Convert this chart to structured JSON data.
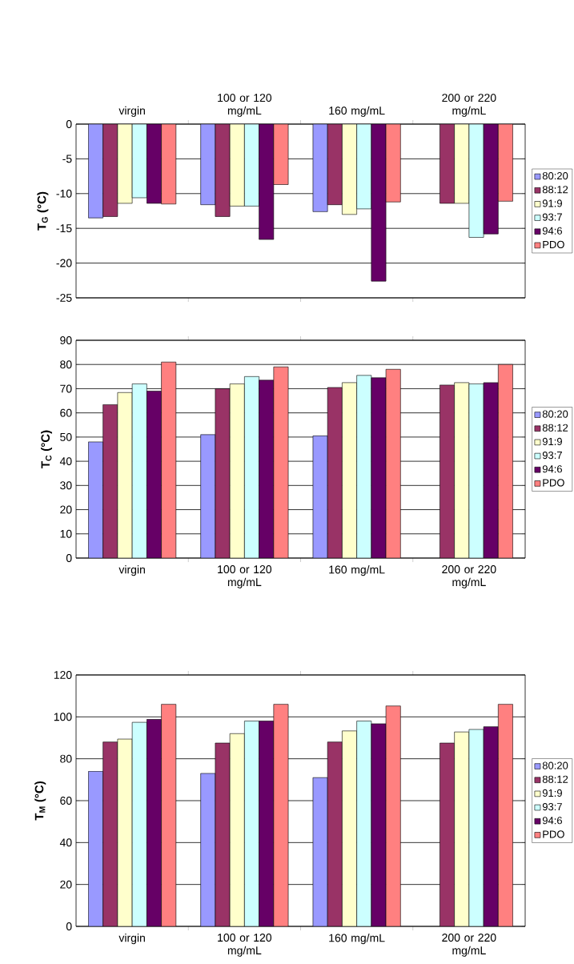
{
  "chart_data": [
    {
      "type": "bar",
      "ylabel": "T$_{G}$ (°C)",
      "categories": [
        "virgin",
        "100 or 120 mg/mL",
        "160 mg/mL",
        "200 or 220 mg/mL"
      ],
      "ylim": [
        -25,
        0
      ],
      "yticks": [
        -25,
        -20,
        -15,
        -10,
        -5,
        0
      ],
      "grid": "y",
      "legend": "right",
      "series": [
        {
          "name": "80:20",
          "color": "#9999ff",
          "values": [
            -13.5,
            -11.6,
            -12.6,
            null
          ]
        },
        {
          "name": "88:12",
          "color": "#993366",
          "values": [
            -13.3,
            -13.3,
            -11.6,
            -11.4
          ]
        },
        {
          "name": "91:9",
          "color": "#ffffcc",
          "values": [
            -11.4,
            -11.8,
            -13.0,
            -11.4
          ]
        },
        {
          "name": "93:7",
          "color": "#ccffff",
          "values": [
            -10.6,
            -11.8,
            -12.2,
            -16.3
          ]
        },
        {
          "name": "94:6",
          "color": "#660066",
          "values": [
            -11.4,
            -16.6,
            -22.6,
            -15.8
          ]
        },
        {
          "name": "PDO",
          "color": "#ff8080",
          "values": [
            -11.5,
            -8.7,
            -11.2,
            -11.1
          ]
        }
      ]
    },
    {
      "type": "bar",
      "ylabel": "T$_{C}$ (°C)",
      "categories": [
        "virgin",
        "100 or 120 mg/mL",
        "160 mg/mL",
        "200 or 220 mg/mL"
      ],
      "ylim": [
        0,
        90
      ],
      "yticks": [
        0,
        10,
        20,
        30,
        40,
        50,
        60,
        70,
        80,
        90
      ],
      "grid": "y",
      "legend": "right",
      "series": [
        {
          "name": "80:20",
          "color": "#9999ff",
          "values": [
            48,
            51,
            50.5,
            null
          ]
        },
        {
          "name": "88:12",
          "color": "#993366",
          "values": [
            63.4,
            70,
            70.5,
            71.5
          ]
        },
        {
          "name": "91:9",
          "color": "#ffffcc",
          "values": [
            68.4,
            72,
            72.5,
            72.5
          ]
        },
        {
          "name": "93:7",
          "color": "#ccffff",
          "values": [
            72,
            75,
            75.5,
            72
          ]
        },
        {
          "name": "94:6",
          "color": "#660066",
          "values": [
            69,
            73.5,
            74.5,
            72.5
          ]
        },
        {
          "name": "PDO",
          "color": "#ff8080",
          "values": [
            81,
            79,
            78,
            80
          ]
        }
      ]
    },
    {
      "type": "bar",
      "ylabel": "T$_{M}$ (°C)",
      "categories": [
        "virgin",
        "100 or 120 mg/mL",
        "160 mg/mL",
        "200 or 220 mg/mL"
      ],
      "ylim": [
        0,
        120
      ],
      "yticks": [
        0,
        20,
        40,
        60,
        80,
        100,
        120
      ],
      "grid": "y",
      "legend": "right",
      "series": [
        {
          "name": "80:20",
          "color": "#9999ff",
          "values": [
            74,
            73,
            71,
            null
          ]
        },
        {
          "name": "88:12",
          "color": "#993366",
          "values": [
            88,
            87.5,
            88,
            87.5
          ]
        },
        {
          "name": "91:9",
          "color": "#ffffcc",
          "values": [
            89.4,
            92,
            93.3,
            92.8
          ]
        },
        {
          "name": "93:7",
          "color": "#ccffff",
          "values": [
            97.4,
            98,
            98,
            94
          ]
        },
        {
          "name": "94:6",
          "color": "#660066",
          "values": [
            98.8,
            98,
            96.7,
            95.3
          ]
        },
        {
          "name": "PDO",
          "color": "#ff8080",
          "values": [
            106,
            106,
            105.2,
            106
          ]
        }
      ]
    }
  ]
}
